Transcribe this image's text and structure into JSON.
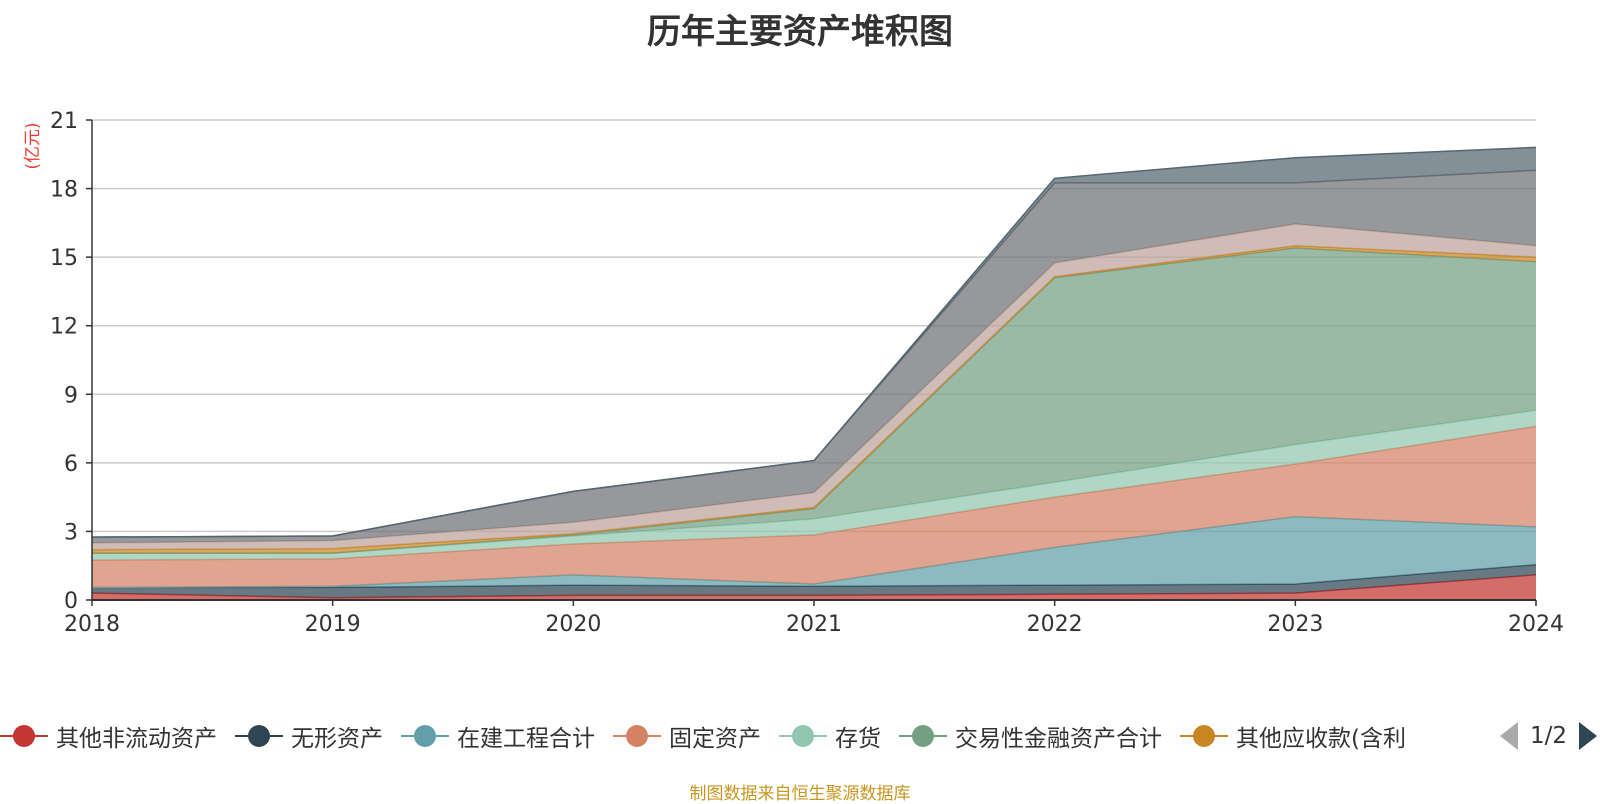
{
  "title": "历年主要资产堆积图",
  "source_note": "制图数据来自恒生聚源数据库",
  "pager": {
    "text": "1/2",
    "prev_icon": "triangle-left-icon",
    "next_icon": "triangle-right-icon"
  },
  "legend": {
    "items": [
      {
        "label": "其他非流动资产",
        "color": "#c23531"
      },
      {
        "label": "无形资产",
        "color": "#2f4554"
      },
      {
        "label": "在建工程合计",
        "color": "#61a0a8"
      },
      {
        "label": "固定资产",
        "color": "#d48265"
      },
      {
        "label": "存货",
        "color": "#91c7ae"
      },
      {
        "label": "交易性金融资产合计",
        "color": "#749f83"
      },
      {
        "label": "其他应收款(含利",
        "color": "#ca8622"
      }
    ]
  },
  "chart_data": {
    "type": "area",
    "stacked": true,
    "title": "历年主要资产堆积图",
    "unit_label": "(亿元)",
    "x": [
      "2018",
      "2019",
      "2020",
      "2021",
      "2022",
      "2023",
      "2024"
    ],
    "ylim": [
      0,
      21
    ],
    "yticks": [
      "0",
      "3",
      "6",
      "9",
      "12",
      "15",
      "18",
      "21"
    ],
    "grid": true,
    "legend_position": "bottom",
    "series": [
      {
        "name": "其他非流动资产",
        "color": "#c23531",
        "values": [
          0.3,
          0.1,
          0.2,
          0.2,
          0.25,
          0.3,
          1.1
        ]
      },
      {
        "name": "无形资产",
        "color": "#2f4554",
        "values": [
          0.25,
          0.45,
          0.45,
          0.4,
          0.4,
          0.4,
          0.45
        ]
      },
      {
        "name": "在建工程合计",
        "color": "#61a0a8",
        "values": [
          0.0,
          0.05,
          0.45,
          0.1,
          1.65,
          2.95,
          1.65
        ]
      },
      {
        "name": "固定资产",
        "color": "#d48265",
        "values": [
          1.2,
          1.2,
          1.35,
          2.15,
          2.2,
          2.3,
          4.4
        ]
      },
      {
        "name": "存货",
        "color": "#91c7ae",
        "values": [
          0.3,
          0.25,
          0.35,
          0.7,
          0.65,
          0.85,
          0.7
        ]
      },
      {
        "name": "交易性金融资产合计",
        "color": "#749f83",
        "values": [
          0.0,
          0.0,
          0.05,
          0.45,
          8.95,
          8.6,
          6.5
        ]
      },
      {
        "name": "其他应收款(含利",
        "color": "#ca8622",
        "values": [
          0.15,
          0.2,
          0.05,
          0.05,
          0.05,
          0.1,
          0.2
        ]
      },
      {
        "name": "",
        "color": "#bda29a",
        "values": [
          0.3,
          0.35,
          0.5,
          0.65,
          0.6,
          0.95,
          0.5
        ]
      },
      {
        "name": "",
        "color": "#6e7074",
        "values": [
          0.25,
          0.2,
          1.35,
          1.4,
          3.5,
          1.8,
          3.3
        ]
      },
      {
        "name": "",
        "color": "#546570",
        "values": [
          0.0,
          0.0,
          0.0,
          0.0,
          0.2,
          1.1,
          1.0
        ]
      }
    ]
  }
}
